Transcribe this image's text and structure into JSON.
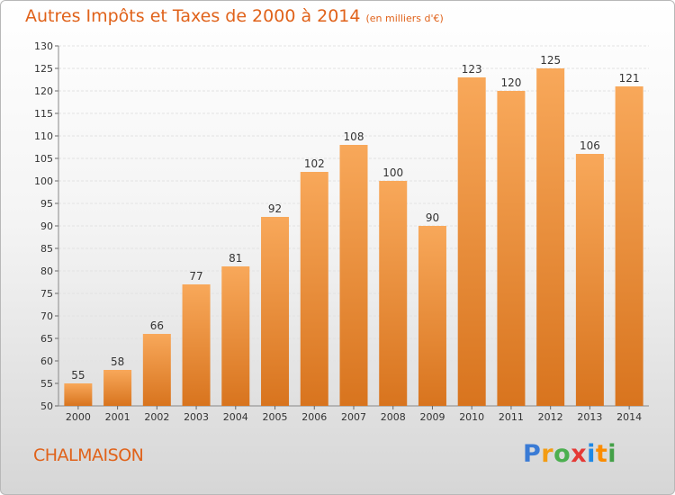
{
  "title": "Autres Impôts et Taxes de 2000 à 2014",
  "unit": "(en milliers d'€)",
  "commune": "CHALMAISON",
  "logo": {
    "letters": [
      "P",
      "r",
      "o",
      "x",
      "i",
      "t",
      "i"
    ],
    "colors": [
      "#3a7bd5",
      "#f39c12",
      "#4caf50",
      "#e53935",
      "#1e88e5",
      "#fb8c00",
      "#43a047"
    ]
  },
  "colors": {
    "bar_top": "#f8a85a",
    "bar_bottom": "#d8741e",
    "accent": "#e0621a"
  },
  "chart_data": {
    "type": "bar",
    "categories": [
      "2000",
      "2001",
      "2002",
      "2003",
      "2004",
      "2005",
      "2006",
      "2007",
      "2008",
      "2009",
      "2010",
      "2011",
      "2012",
      "2013",
      "2014"
    ],
    "values": [
      55,
      58,
      66,
      77,
      81,
      92,
      102,
      108,
      100,
      90,
      123,
      120,
      125,
      106,
      121
    ],
    "data_labels": [
      "55",
      "58",
      "66",
      "77",
      "81",
      "92",
      "102",
      "108",
      "100",
      "90",
      "123",
      "120",
      "125",
      "106",
      "121"
    ],
    "yticks": [
      "50",
      "55",
      "60",
      "65",
      "70",
      "75",
      "80",
      "85",
      "90",
      "95",
      "100",
      "105",
      "110",
      "115",
      "120",
      "125",
      "130"
    ],
    "ylim": [
      50,
      130
    ],
    "grid": true
  }
}
